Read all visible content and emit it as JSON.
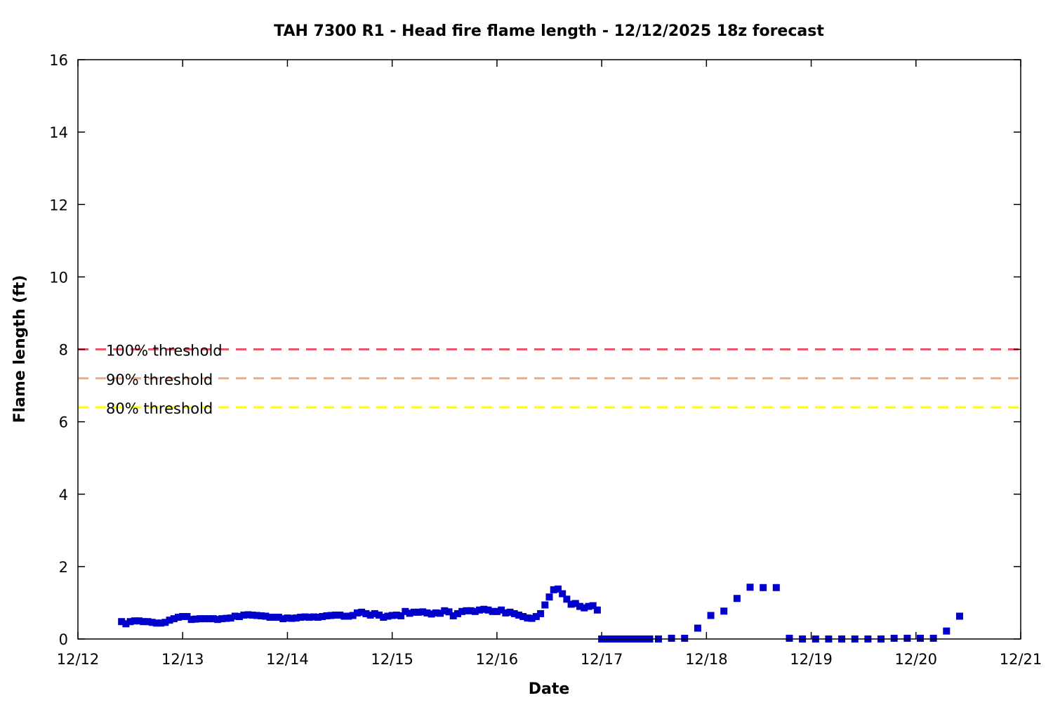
{
  "chart_data": {
    "type": "scatter",
    "title": "TAH 7300 R1 - Head fire flame length - 12/12/2025 18z forecast",
    "xlabel": "Date",
    "ylabel": "Flame length (ft)",
    "xlim": [
      "2025-12-12T00:00",
      "2025-12-21T00:00"
    ],
    "ylim": [
      0,
      16
    ],
    "x_ticks": [
      "12/12",
      "12/13",
      "12/14",
      "12/15",
      "12/16",
      "12/17",
      "12/18",
      "12/19",
      "12/20",
      "12/21"
    ],
    "y_ticks": [
      "0",
      "2",
      "4",
      "6",
      "8",
      "10",
      "12",
      "14",
      "16"
    ],
    "grid": false,
    "legend_position": "left",
    "point_color": "#0000cc",
    "thresholds": [
      {
        "name": "100% threshold",
        "value": 8.0,
        "color": "#e8566f"
      },
      {
        "name": "90% threshold",
        "value": 7.2,
        "color": "#f4a882"
      },
      {
        "name": "80% threshold",
        "value": 6.4,
        "color": "#ffff00"
      }
    ],
    "points": [
      [
        "2025-12-12T10:00",
        0.48
      ],
      [
        "2025-12-12T11:00",
        0.42
      ],
      [
        "2025-12-12T12:00",
        0.48
      ],
      [
        "2025-12-12T13:00",
        0.5
      ],
      [
        "2025-12-12T14:00",
        0.5
      ],
      [
        "2025-12-12T15:00",
        0.48
      ],
      [
        "2025-12-12T16:00",
        0.48
      ],
      [
        "2025-12-12T17:00",
        0.46
      ],
      [
        "2025-12-12T18:00",
        0.44
      ],
      [
        "2025-12-12T19:00",
        0.44
      ],
      [
        "2025-12-12T20:00",
        0.46
      ],
      [
        "2025-12-12T21:00",
        0.52
      ],
      [
        "2025-12-12T22:00",
        0.56
      ],
      [
        "2025-12-12T23:00",
        0.6
      ],
      [
        "2025-12-13T00:00",
        0.62
      ],
      [
        "2025-12-13T01:00",
        0.62
      ],
      [
        "2025-12-13T02:00",
        0.54
      ],
      [
        "2025-12-13T03:00",
        0.55
      ],
      [
        "2025-12-13T04:00",
        0.56
      ],
      [
        "2025-12-13T05:00",
        0.56
      ],
      [
        "2025-12-13T06:00",
        0.56
      ],
      [
        "2025-12-13T07:00",
        0.56
      ],
      [
        "2025-12-13T08:00",
        0.54
      ],
      [
        "2025-12-13T09:00",
        0.56
      ],
      [
        "2025-12-13T10:00",
        0.57
      ],
      [
        "2025-12-13T11:00",
        0.58
      ],
      [
        "2025-12-13T12:00",
        0.63
      ],
      [
        "2025-12-13T13:00",
        0.62
      ],
      [
        "2025-12-13T14:00",
        0.66
      ],
      [
        "2025-12-13T15:00",
        0.67
      ],
      [
        "2025-12-13T16:00",
        0.66
      ],
      [
        "2025-12-13T17:00",
        0.65
      ],
      [
        "2025-12-13T18:00",
        0.64
      ],
      [
        "2025-12-13T19:00",
        0.63
      ],
      [
        "2025-12-13T20:00",
        0.6
      ],
      [
        "2025-12-13T21:00",
        0.6
      ],
      [
        "2025-12-13T22:00",
        0.6
      ],
      [
        "2025-12-13T23:00",
        0.56
      ],
      [
        "2025-12-14T00:00",
        0.58
      ],
      [
        "2025-12-14T01:00",
        0.57
      ],
      [
        "2025-12-14T02:00",
        0.58
      ],
      [
        "2025-12-14T03:00",
        0.6
      ],
      [
        "2025-12-14T04:00",
        0.61
      ],
      [
        "2025-12-14T05:00",
        0.6
      ],
      [
        "2025-12-14T06:00",
        0.61
      ],
      [
        "2025-12-14T07:00",
        0.6
      ],
      [
        "2025-12-14T08:00",
        0.62
      ],
      [
        "2025-12-14T09:00",
        0.64
      ],
      [
        "2025-12-14T10:00",
        0.65
      ],
      [
        "2025-12-14T11:00",
        0.66
      ],
      [
        "2025-12-14T12:00",
        0.66
      ],
      [
        "2025-12-14T13:00",
        0.63
      ],
      [
        "2025-12-14T14:00",
        0.63
      ],
      [
        "2025-12-14T15:00",
        0.65
      ],
      [
        "2025-12-14T16:00",
        0.72
      ],
      [
        "2025-12-14T17:00",
        0.74
      ],
      [
        "2025-12-14T18:00",
        0.7
      ],
      [
        "2025-12-14T19:00",
        0.66
      ],
      [
        "2025-12-14T20:00",
        0.7
      ],
      [
        "2025-12-14T21:00",
        0.66
      ],
      [
        "2025-12-14T22:00",
        0.6
      ],
      [
        "2025-12-14T23:00",
        0.63
      ],
      [
        "2025-12-15T00:00",
        0.65
      ],
      [
        "2025-12-15T01:00",
        0.66
      ],
      [
        "2025-12-15T02:00",
        0.64
      ],
      [
        "2025-12-15T03:00",
        0.76
      ],
      [
        "2025-12-15T04:00",
        0.71
      ],
      [
        "2025-12-15T05:00",
        0.74
      ],
      [
        "2025-12-15T06:00",
        0.74
      ],
      [
        "2025-12-15T07:00",
        0.75
      ],
      [
        "2025-12-15T08:00",
        0.72
      ],
      [
        "2025-12-15T09:00",
        0.69
      ],
      [
        "2025-12-15T10:00",
        0.72
      ],
      [
        "2025-12-15T11:00",
        0.71
      ],
      [
        "2025-12-15T12:00",
        0.78
      ],
      [
        "2025-12-15T13:00",
        0.75
      ],
      [
        "2025-12-15T14:00",
        0.64
      ],
      [
        "2025-12-15T15:00",
        0.7
      ],
      [
        "2025-12-15T16:00",
        0.76
      ],
      [
        "2025-12-15T17:00",
        0.78
      ],
      [
        "2025-12-15T18:00",
        0.78
      ],
      [
        "2025-12-15T19:00",
        0.76
      ],
      [
        "2025-12-15T20:00",
        0.8
      ],
      [
        "2025-12-15T21:00",
        0.82
      ],
      [
        "2025-12-15T22:00",
        0.8
      ],
      [
        "2025-12-15T23:00",
        0.76
      ],
      [
        "2025-12-16T00:00",
        0.76
      ],
      [
        "2025-12-16T01:00",
        0.8
      ],
      [
        "2025-12-16T02:00",
        0.72
      ],
      [
        "2025-12-16T03:00",
        0.74
      ],
      [
        "2025-12-16T04:00",
        0.7
      ],
      [
        "2025-12-16T05:00",
        0.66
      ],
      [
        "2025-12-16T06:00",
        0.62
      ],
      [
        "2025-12-16T07:00",
        0.58
      ],
      [
        "2025-12-16T08:00",
        0.57
      ],
      [
        "2025-12-16T09:00",
        0.62
      ],
      [
        "2025-12-16T10:00",
        0.7
      ],
      [
        "2025-12-16T11:00",
        0.94
      ],
      [
        "2025-12-16T12:00",
        1.16
      ],
      [
        "2025-12-16T13:00",
        1.36
      ],
      [
        "2025-12-16T14:00",
        1.38
      ],
      [
        "2025-12-16T15:00",
        1.25
      ],
      [
        "2025-12-16T16:00",
        1.1
      ],
      [
        "2025-12-16T17:00",
        0.96
      ],
      [
        "2025-12-16T18:00",
        0.98
      ],
      [
        "2025-12-16T19:00",
        0.9
      ],
      [
        "2025-12-16T20:00",
        0.86
      ],
      [
        "2025-12-16T21:00",
        0.9
      ],
      [
        "2025-12-16T22:00",
        0.92
      ],
      [
        "2025-12-16T23:00",
        0.8
      ],
      [
        "2025-12-17T00:00",
        0
      ],
      [
        "2025-12-17T01:00",
        0
      ],
      [
        "2025-12-17T02:00",
        0
      ],
      [
        "2025-12-17T03:00",
        0
      ],
      [
        "2025-12-17T04:00",
        0
      ],
      [
        "2025-12-17T05:00",
        0
      ],
      [
        "2025-12-17T06:00",
        0
      ],
      [
        "2025-12-17T07:00",
        0
      ],
      [
        "2025-12-17T08:00",
        0
      ],
      [
        "2025-12-17T09:00",
        0
      ],
      [
        "2025-12-17T10:00",
        0
      ],
      [
        "2025-12-17T11:00",
        0
      ],
      [
        "2025-12-17T13:00",
        0
      ],
      [
        "2025-12-17T16:00",
        0.02
      ],
      [
        "2025-12-17T19:00",
        0.02
      ],
      [
        "2025-12-17T22:00",
        0.3
      ],
      [
        "2025-12-18T01:00",
        0.65
      ],
      [
        "2025-12-18T04:00",
        0.77
      ],
      [
        "2025-12-18T07:00",
        1.12
      ],
      [
        "2025-12-18T10:00",
        1.43
      ],
      [
        "2025-12-18T13:00",
        1.42
      ],
      [
        "2025-12-18T16:00",
        1.42
      ],
      [
        "2025-12-18T19:00",
        0.02
      ],
      [
        "2025-12-18T22:00",
        0
      ],
      [
        "2025-12-19T01:00",
        0
      ],
      [
        "2025-12-19T04:00",
        0
      ],
      [
        "2025-12-19T07:00",
        0
      ],
      [
        "2025-12-19T10:00",
        0
      ],
      [
        "2025-12-19T13:00",
        0
      ],
      [
        "2025-12-19T16:00",
        0
      ],
      [
        "2025-12-19T19:00",
        0.02
      ],
      [
        "2025-12-19T22:00",
        0.02
      ],
      [
        "2025-12-20T01:00",
        0.02
      ],
      [
        "2025-12-20T04:00",
        0.02
      ],
      [
        "2025-12-20T07:00",
        0.22
      ],
      [
        "2025-12-20T10:00",
        0.63
      ]
    ]
  }
}
